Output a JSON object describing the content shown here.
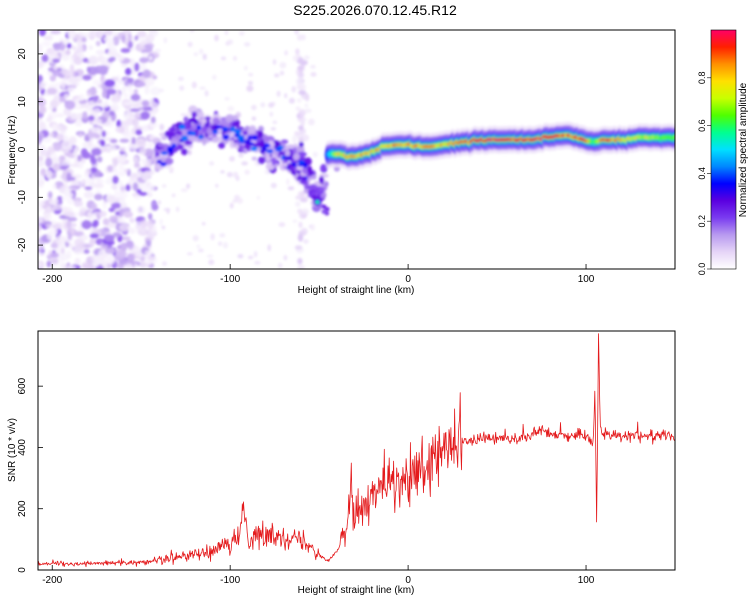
{
  "figure": {
    "title": "S225.2026.070.12.45.R12"
  },
  "chart_data": [
    {
      "type": "heatmap",
      "xlabel": "Height of straight line (km)",
      "ylabel": "Frequency (Hz)",
      "xlim": [
        -208,
        150
      ],
      "ylim": [
        -25,
        25
      ],
      "xticks": [
        -200,
        -100,
        0,
        100
      ],
      "yticks": [
        -20,
        -10,
        0,
        10,
        20
      ],
      "colorbar": {
        "label": "Normalized spectral amplitude",
        "range": [
          0.0,
          1.0
        ],
        "ticks": [
          0.0,
          0.2,
          0.4,
          0.6,
          0.8
        ],
        "colors": [
          "#ffffff",
          "#e6d5f7",
          "#b89af0",
          "#7a3cf0",
          "#5a00e0",
          "#0000ff",
          "#0088ff",
          "#00e0ff",
          "#00ff90",
          "#50ff00",
          "#c8ff00",
          "#ffe000",
          "#ff9000",
          "#ff2000",
          "#ff0066"
        ]
      },
      "ridge": {
        "x": [
          -140,
          -130,
          -120,
          -110,
          -100,
          -90,
          -80,
          -70,
          -60,
          -50,
          -45,
          -40,
          -30,
          -20,
          -10,
          0,
          10,
          20,
          30,
          40,
          50,
          60,
          70,
          80,
          90,
          100,
          105,
          110,
          120,
          130,
          140,
          150
        ],
        "freq": [
          -2,
          3,
          4,
          5,
          4,
          2,
          0,
          -1,
          -3,
          -11,
          -1,
          -1,
          -1.5,
          -0.5,
          1,
          1,
          0.5,
          1,
          1.5,
          2,
          2,
          2,
          2,
          2.5,
          3,
          2,
          1.5,
          2,
          2,
          2.5,
          2.5,
          2.5
        ],
        "amplitude": [
          0.25,
          0.3,
          0.3,
          0.3,
          0.3,
          0.35,
          0.35,
          0.35,
          0.3,
          0.3,
          0.4,
          0.75,
          0.85,
          0.8,
          0.85,
          0.85,
          0.85,
          0.8,
          0.85,
          0.95,
          0.95,
          0.95,
          0.95,
          0.95,
          0.9,
          0.95,
          0.6,
          0.95,
          0.85,
          0.75,
          0.7,
          0.65
        ]
      }
    },
    {
      "type": "line",
      "xlabel": "Height of straight line (km)",
      "ylabel": "SNR (10 * v/v)",
      "xlim": [
        -208,
        150
      ],
      "ylim": [
        0,
        780
      ],
      "xticks": [
        -200,
        -100,
        0,
        100
      ],
      "yticks": [
        0,
        200,
        400,
        600
      ],
      "color": "#e41a1c",
      "series": [
        {
          "name": "SNR",
          "x": [
            -208,
            -190,
            -170,
            -150,
            -140,
            -130,
            -120,
            -110,
            -100,
            -95,
            -93,
            -90,
            -80,
            -70,
            -60,
            -55,
            -50,
            -45,
            -40,
            -35,
            -32,
            -30,
            -25,
            -20,
            -15,
            -10,
            -5,
            0,
            5,
            10,
            15,
            20,
            25,
            30,
            40,
            50,
            60,
            70,
            75,
            80,
            90,
            100,
            104,
            105,
            106,
            107,
            108,
            110,
            120,
            130,
            140,
            150
          ],
          "y": [
            20,
            20,
            22,
            25,
            35,
            45,
            50,
            60,
            80,
            110,
            220,
            110,
            110,
            110,
            100,
            80,
            50,
            30,
            60,
            120,
            300,
            180,
            200,
            240,
            270,
            280,
            270,
            300,
            310,
            320,
            350,
            380,
            410,
            420,
            430,
            430,
            430,
            440,
            460,
            445,
            440,
            440,
            420,
            600,
            130,
            780,
            460,
            440,
            440,
            440,
            440,
            440
          ]
        }
      ]
    }
  ]
}
